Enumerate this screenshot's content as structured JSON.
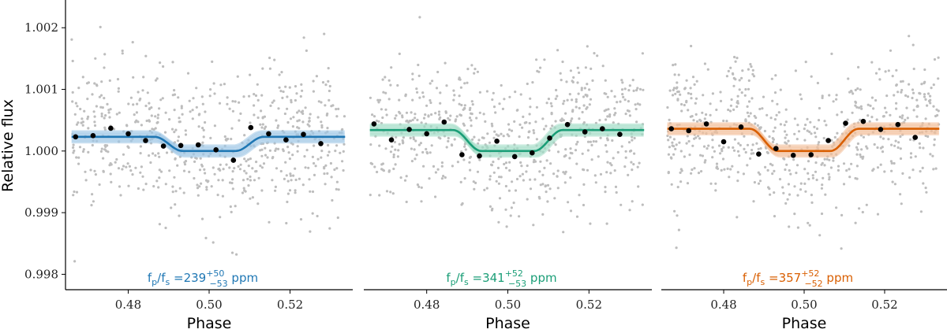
{
  "chart_data": [
    {
      "type": "scatter",
      "panel": "left",
      "ylabel": "Relative flux",
      "xlabel": "Phase",
      "xlim": [
        0.4645,
        0.5355
      ],
      "ylim": [
        0.99775,
        1.00245
      ],
      "x_ticks": [
        "0.48",
        "0.50",
        "0.52"
      ],
      "x_tick_values": [
        0.48,
        0.5,
        0.52
      ],
      "y_ticks": [
        "1.002",
        "1.001",
        "1.000",
        "0.999",
        "0.998"
      ],
      "y_tick_values": [
        1.002,
        1.001,
        1.0,
        0.999,
        0.998
      ],
      "color": "#1f77b4",
      "band_color": "#9ec6e6",
      "raw_points_color": "#bdbdbd",
      "annotation": {
        "label": "f",
        "sub1": "p",
        "sep": "/f",
        "sub2": "s",
        "eq": " =",
        "value": "239",
        "upper": "+50",
        "lower": "−53",
        "unit": " ppm"
      },
      "model": {
        "baseline": 1.00023,
        "bottom": 1.0,
        "ingress": [
          0.4865,
          0.4935
        ],
        "egress": [
          0.5065,
          0.5135
        ]
      },
      "binned_points": [
        {
          "x": 0.467,
          "y": 1.00023
        },
        {
          "x": 0.4713,
          "y": 1.00025
        },
        {
          "x": 0.4757,
          "y": 1.00037
        },
        {
          "x": 0.48,
          "y": 1.00028
        },
        {
          "x": 0.4843,
          "y": 1.00017
        },
        {
          "x": 0.4887,
          "y": 1.00008
        },
        {
          "x": 0.493,
          "y": 1.00009
        },
        {
          "x": 0.4973,
          "y": 1.0001
        },
        {
          "x": 0.5017,
          "y": 1.00002
        },
        {
          "x": 0.506,
          "y": 0.99985
        },
        {
          "x": 0.5103,
          "y": 1.00038
        },
        {
          "x": 0.5147,
          "y": 1.00028
        },
        {
          "x": 0.519,
          "y": 1.00018
        },
        {
          "x": 0.5233,
          "y": 1.00027
        },
        {
          "x": 0.5276,
          "y": 1.00012
        }
      ]
    },
    {
      "type": "scatter",
      "panel": "middle",
      "ylabel": "",
      "xlabel": "Phase",
      "xlim": [
        0.4645,
        0.5355
      ],
      "ylim": [
        0.99775,
        1.00245
      ],
      "x_ticks": [
        "0.48",
        "0.50",
        "0.52"
      ],
      "x_tick_values": [
        0.48,
        0.5,
        0.52
      ],
      "color": "#1b9e77",
      "band_color": "#a3dcc6",
      "raw_points_color": "#bdbdbd",
      "annotation": {
        "label": "f",
        "sub1": "p",
        "sep": "/f",
        "sub2": "s",
        "eq": " =",
        "value": "341",
        "upper": "+52",
        "lower": "−53",
        "unit": " ppm"
      },
      "model": {
        "baseline": 1.00034,
        "bottom": 1.0,
        "ingress": [
          0.4865,
          0.4935
        ],
        "egress": [
          0.5065,
          0.5135
        ]
      },
      "binned_points": [
        {
          "x": 0.467,
          "y": 1.00044
        },
        {
          "x": 0.4713,
          "y": 1.00018
        },
        {
          "x": 0.4757,
          "y": 1.00035
        },
        {
          "x": 0.48,
          "y": 1.00028
        },
        {
          "x": 0.4843,
          "y": 1.00047
        },
        {
          "x": 0.4887,
          "y": 0.99994
        },
        {
          "x": 0.493,
          "y": 0.99992
        },
        {
          "x": 0.4973,
          "y": 1.00016
        },
        {
          "x": 0.5017,
          "y": 0.99991
        },
        {
          "x": 0.506,
          "y": 0.99997
        },
        {
          "x": 0.5103,
          "y": 1.00021
        },
        {
          "x": 0.5147,
          "y": 1.00043
        },
        {
          "x": 0.519,
          "y": 1.00031
        },
        {
          "x": 0.5233,
          "y": 1.00036
        },
        {
          "x": 0.5276,
          "y": 1.00027
        }
      ]
    },
    {
      "type": "scatter",
      "panel": "right",
      "ylabel": "",
      "xlabel": "Phase",
      "xlim": [
        0.4645,
        0.5355
      ],
      "ylim": [
        0.99775,
        1.00245
      ],
      "x_ticks": [
        "0.48",
        "0.50",
        "0.52"
      ],
      "x_tick_values": [
        0.48,
        0.5,
        0.52
      ],
      "color": "#d95f02",
      "band_color": "#f2c09a",
      "raw_points_color": "#bdbdbd",
      "annotation": {
        "label": "f",
        "sub1": "p",
        "sep": "/f",
        "sub2": "s",
        "eq": " =",
        "value": "357",
        "upper": "+52",
        "lower": "−52",
        "unit": " ppm"
      },
      "model": {
        "baseline": 1.00036,
        "bottom": 1.0,
        "ingress": [
          0.4865,
          0.4935
        ],
        "egress": [
          0.5065,
          0.5135
        ]
      },
      "binned_points": [
        {
          "x": 0.467,
          "y": 1.00036
        },
        {
          "x": 0.4713,
          "y": 1.00033
        },
        {
          "x": 0.4757,
          "y": 1.00044
        },
        {
          "x": 0.48,
          "y": 1.00015
        },
        {
          "x": 0.4843,
          "y": 1.00039
        },
        {
          "x": 0.4887,
          "y": 0.99995
        },
        {
          "x": 0.493,
          "y": 1.00004
        },
        {
          "x": 0.4973,
          "y": 0.99993
        },
        {
          "x": 0.5017,
          "y": 0.99994
        },
        {
          "x": 0.506,
          "y": 1.00017
        },
        {
          "x": 0.5103,
          "y": 1.00045
        },
        {
          "x": 0.5147,
          "y": 1.00048
        },
        {
          "x": 0.519,
          "y": 1.00035
        },
        {
          "x": 0.5233,
          "y": 1.00043
        },
        {
          "x": 0.5276,
          "y": 1.00022
        }
      ]
    }
  ]
}
